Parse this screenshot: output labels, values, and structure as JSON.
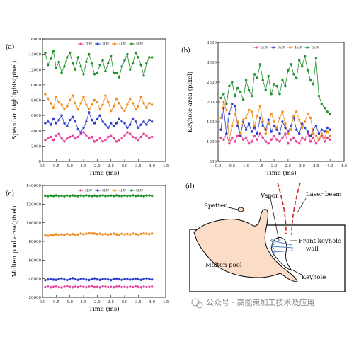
{
  "legend_labels": [
    "2kW",
    "3kW",
    "4kW",
    "5kW"
  ],
  "series_colors": [
    "#e8409a",
    "#2a3ec8",
    "#f28c1e",
    "#1f8f2a"
  ],
  "watermark": "公众号 · 高能束加工技术及应用",
  "chart_data": [
    {
      "type": "line",
      "panel": "(a)",
      "xlabel": "Time (ms)",
      "ylabel": "Specular highlights(pixel)",
      "xlim": [
        0,
        4.5
      ],
      "ylim": [
        0,
        16000
      ],
      "xticks": [
        "0.0",
        "0.5",
        "1.0",
        "1.5",
        "2.0",
        "2.5",
        "3.0",
        "3.5",
        "4.0",
        "4.5"
      ],
      "yticks": [
        "0",
        "2000",
        "4000",
        "6000",
        "8000",
        "10000",
        "12000",
        "14000",
        "16000"
      ],
      "x": [
        0.1,
        0.2,
        0.3,
        0.4,
        0.5,
        0.6,
        0.7,
        0.8,
        0.9,
        1.0,
        1.1,
        1.2,
        1.3,
        1.4,
        1.5,
        1.6,
        1.7,
        1.8,
        1.9,
        2.0,
        2.1,
        2.2,
        2.3,
        2.4,
        2.5,
        2.6,
        2.7,
        2.8,
        2.9,
        3.0,
        3.1,
        3.2,
        3.3,
        3.4,
        3.5,
        3.6,
        3.7,
        3.8,
        3.9,
        4.0
      ],
      "series": [
        {
          "name": "2kW",
          "values": [
            2800,
            3000,
            3200,
            2800,
            3400,
            3600,
            3000,
            2600,
            3000,
            3200,
            3400,
            3000,
            3200,
            3600,
            3800,
            3400,
            3000,
            3200,
            2600,
            2800,
            3000,
            2600,
            2800,
            3200,
            3400,
            3000,
            2600,
            2800,
            3000,
            3400,
            3800,
            3600,
            3200,
            3000,
            2800,
            3200,
            3600,
            3400,
            3000,
            3200
          ]
        },
        {
          "name": "3kW",
          "values": [
            5000,
            5200,
            4800,
            5600,
            5000,
            5400,
            6000,
            5000,
            4600,
            5400,
            5800,
            5200,
            4200,
            3800,
            4400,
            5200,
            6400,
            5400,
            5000,
            5600,
            6000,
            5200,
            4800,
            4400,
            5000,
            4600,
            5000,
            5600,
            5200,
            5000,
            4400,
            4800,
            5600,
            5200,
            4400,
            4800,
            5200,
            4800,
            5400,
            5200
          ]
        },
        {
          "name": "4kW",
          "values": [
            8800,
            8200,
            7600,
            7000,
            8400,
            7800,
            7400,
            6800,
            7200,
            8000,
            8600,
            7600,
            6800,
            7600,
            8400,
            7400,
            6800,
            7400,
            8000,
            7800,
            6800,
            7400,
            8600,
            7800,
            6600,
            7200,
            8200,
            7600,
            7000,
            6600,
            7400,
            8200,
            7600,
            6800,
            7200,
            8400,
            7600,
            7000,
            7600,
            7400
          ]
        },
        {
          "name": "5kW",
          "values": [
            14200,
            12600,
            13400,
            14400,
            12200,
            13000,
            11600,
            12400,
            13600,
            14200,
            12800,
            12000,
            13600,
            12400,
            11400,
            13000,
            14000,
            12800,
            11400,
            11600,
            12600,
            13200,
            11800,
            12800,
            13800,
            11600,
            11600,
            11000,
            12400,
            13200,
            14000,
            12000,
            12800,
            14200,
            13600,
            12600,
            11200,
            12800,
            13600,
            13600
          ]
        }
      ]
    },
    {
      "type": "line",
      "panel": "(b)",
      "xlabel": "Time (ms)",
      "ylabel": "Keyhole area (pixel)",
      "xlim": [
        0,
        4.5
      ],
      "ylim": [
        500,
        3500
      ],
      "xticks": [
        "0.0",
        "0.5",
        "1.0",
        "1.5",
        "2.0",
        "2.5",
        "3.0",
        "3.5",
        "4.0",
        "4.5"
      ],
      "yticks": [
        "500",
        "1000",
        "1500",
        "2000",
        "2500",
        "3000",
        "3500"
      ],
      "x": [
        0.1,
        0.2,
        0.3,
        0.4,
        0.5,
        0.6,
        0.7,
        0.8,
        0.9,
        1.0,
        1.1,
        1.2,
        1.3,
        1.4,
        1.5,
        1.6,
        1.7,
        1.8,
        1.9,
        2.0,
        2.1,
        2.2,
        2.3,
        2.4,
        2.5,
        2.6,
        2.7,
        2.8,
        2.9,
        3.0,
        3.1,
        3.2,
        3.3,
        3.4,
        3.5,
        3.6,
        3.7,
        3.8,
        3.9,
        4.0
      ],
      "series": [
        {
          "name": "2kW",
          "values": [
            1100,
            1050,
            1200,
            950,
            1100,
            1000,
            1150,
            1200,
            1050,
            1100,
            950,
            1000,
            1150,
            1050,
            1200,
            1100,
            1000,
            950,
            1050,
            1150,
            1050,
            1000,
            1100,
            1200,
            950,
            1050,
            1100,
            1000,
            950,
            1100,
            1050,
            1200,
            1000,
            1100,
            950,
            1050,
            1150,
            1000,
            1100,
            1050
          ]
        },
        {
          "name": "3kW",
          "values": [
            1300,
            1850,
            1200,
            1700,
            1950,
            1900,
            1400,
            1150,
            1500,
            1300,
            1450,
            1250,
            1350,
            1200,
            1600,
            1400,
            1300,
            1550,
            1250,
            1400,
            1300,
            1200,
            1500,
            1350,
            1250,
            1400,
            1600,
            1300,
            1200,
            1450,
            1350,
            1250,
            1150,
            1300,
            1400,
            1200,
            1300,
            1250,
            1350,
            1300
          ]
        },
        {
          "name": "4kW",
          "values": [
            1600,
            2000,
            1800,
            1050,
            1400,
            1700,
            1500,
            1200,
            1550,
            1600,
            1800,
            1750,
            1400,
            1650,
            1900,
            1500,
            1200,
            1450,
            1700,
            1500,
            1350,
            1600,
            1750,
            1450,
            1200,
            1300,
            1650,
            1750,
            1550,
            1350,
            1500,
            1700,
            1600,
            1200,
            1150,
            1050,
            1200,
            1100,
            1250,
            1150
          ]
        },
        {
          "name": "5kW",
          "values": [
            2100,
            2200,
            1950,
            2400,
            2500,
            2150,
            2350,
            2250,
            2050,
            2550,
            2300,
            2150,
            2700,
            2600,
            2950,
            2550,
            2300,
            2650,
            2200,
            2450,
            2400,
            2200,
            2550,
            2400,
            2800,
            2950,
            2700,
            2600,
            3050,
            2900,
            3150,
            2800,
            2550,
            2450,
            3100,
            2150,
            1950,
            1850,
            1750,
            1700
          ]
        }
      ]
    },
    {
      "type": "scatter",
      "panel": "(c)",
      "xlabel": "Time (ms)",
      "ylabel": "Molten pool area(pixel)",
      "xlim": [
        0,
        4.5
      ],
      "ylim": [
        20000,
        140000
      ],
      "xticks": [
        "0.0",
        "0.5",
        "1.0",
        "1.5",
        "2.0",
        "2.5",
        "3.0",
        "3.5",
        "4.0",
        "4.5"
      ],
      "yticks": [
        "20000",
        "40000",
        "60000",
        "80000",
        "100000",
        "120000",
        "140000"
      ],
      "x": [
        0.1,
        0.2,
        0.3,
        0.4,
        0.5,
        0.6,
        0.7,
        0.8,
        0.9,
        1.0,
        1.1,
        1.2,
        1.3,
        1.4,
        1.5,
        1.6,
        1.7,
        1.8,
        1.9,
        2.0,
        2.1,
        2.2,
        2.3,
        2.4,
        2.5,
        2.6,
        2.7,
        2.8,
        2.9,
        3.0,
        3.1,
        3.2,
        3.3,
        3.4,
        3.5,
        3.6,
        3.7,
        3.8,
        3.9,
        4.0
      ],
      "series": [
        {
          "name": "2kW",
          "values": [
            31000,
            31500,
            30800,
            31200,
            31600,
            31000,
            30600,
            31400,
            31800,
            31200,
            30800,
            31400,
            31000,
            31600,
            31200,
            30800,
            31400,
            31800,
            31000,
            31200,
            30800,
            31600,
            31400,
            31000,
            31200,
            30800,
            31400,
            31600,
            31000,
            31200,
            30800,
            31400,
            31000,
            31600,
            31200,
            30800,
            31400,
            31000,
            31200,
            31400
          ]
        },
        {
          "name": "3kW",
          "values": [
            38500,
            39200,
            40000,
            39000,
            38800,
            39600,
            40400,
            39200,
            38600,
            39800,
            40600,
            39400,
            38800,
            39600,
            40200,
            39000,
            38600,
            39800,
            40400,
            39200,
            38800,
            39600,
            40000,
            39200,
            38600,
            39800,
            40200,
            39400,
            38800,
            39600,
            40000,
            39000,
            39400,
            40200,
            39600,
            38800,
            39800,
            40400,
            39800,
            39200
          ]
        },
        {
          "name": "4kW",
          "values": [
            86500,
            86000,
            87200,
            86400,
            87600,
            86800,
            87400,
            86600,
            88000,
            87000,
            87800,
            86600,
            87400,
            88400,
            87600,
            88200,
            89000,
            88600,
            88400,
            87800,
            88200,
            87400,
            88000,
            87200,
            87800,
            88400,
            87600,
            87000,
            88200,
            87600,
            88000,
            87400,
            88400,
            87800,
            87200,
            88000,
            88600,
            88200,
            87800,
            88400
          ]
        },
        {
          "name": "5kW",
          "values": [
            129000,
            128600,
            129200,
            128800,
            129400,
            128600,
            129000,
            128400,
            129200,
            128800,
            129400,
            129000,
            128600,
            129200,
            128800,
            129400,
            129000,
            128600,
            129200,
            128800,
            129000,
            129400,
            128600,
            129000,
            129200,
            128800,
            129400,
            129000,
            128600,
            129200,
            128800,
            129000,
            129400,
            128800,
            129200,
            129000,
            128600,
            129200,
            129400,
            129000
          ]
        }
      ]
    }
  ],
  "diagram": {
    "panel": "(d)",
    "labels": {
      "spatter": "Spatter",
      "vapor": "Vapor",
      "laser_beam": "Laser beam",
      "front_keyhole_wall_1": "Front keyhole",
      "front_keyhole_wall_2": "wall",
      "molten_pool": "Molten pool",
      "keyhole": "Keyhole"
    }
  }
}
